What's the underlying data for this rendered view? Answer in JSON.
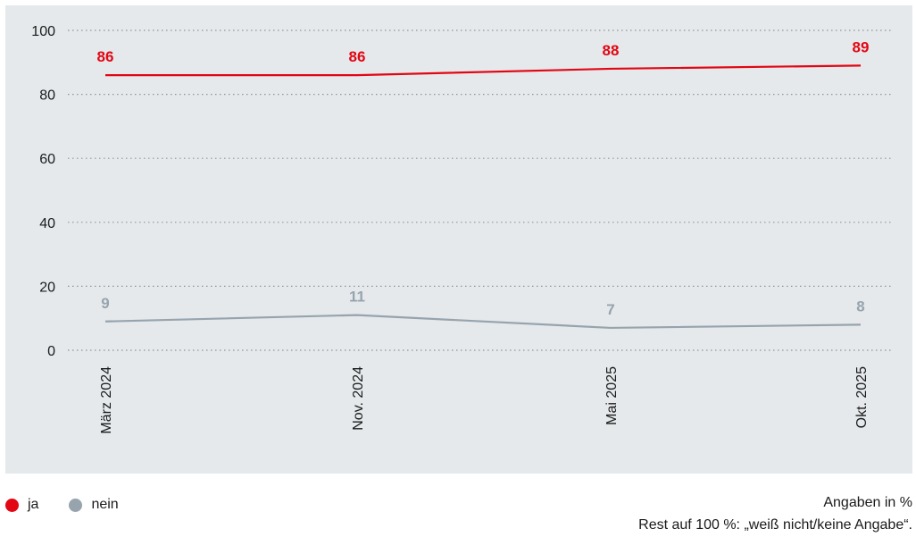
{
  "chart_data": {
    "type": "line",
    "categories": [
      "März 2024",
      "Nov. 2024",
      "Mai 2025",
      "Okt. 2025"
    ],
    "series": [
      {
        "name": "ja",
        "values": [
          86,
          86,
          88,
          89
        ],
        "color": "#e30613"
      },
      {
        "name": "nein",
        "values": [
          9,
          11,
          7,
          8
        ],
        "color": "#97a4ad"
      }
    ],
    "ylim": [
      0,
      100
    ],
    "yticks": [
      0,
      20,
      40,
      60,
      80,
      100
    ],
    "grid": true,
    "legend_position": "bottom-left"
  },
  "legend": {
    "items": [
      {
        "label": "ja",
        "color": "#e30613"
      },
      {
        "label": "nein",
        "color": "#97a4ad"
      }
    ]
  },
  "notes": {
    "unit": "Angaben in %",
    "rest": "Rest auf 100 %: „weiß nicht/keine Angabe“."
  }
}
